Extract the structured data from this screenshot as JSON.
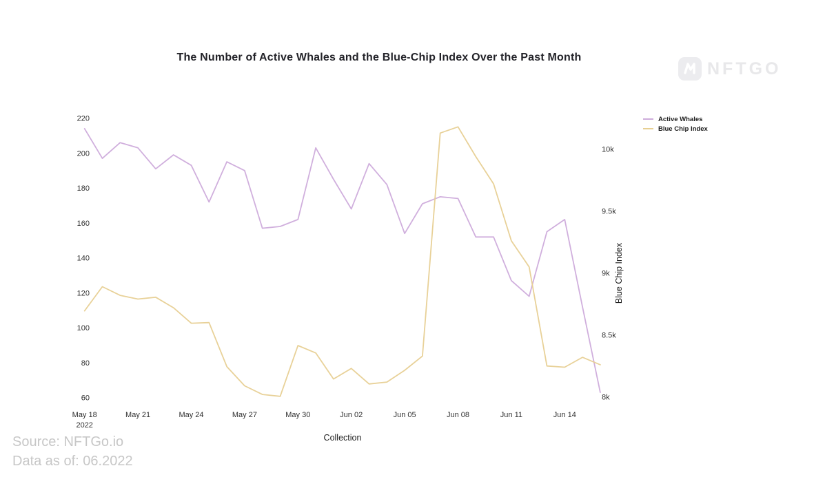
{
  "title": "The Number of Active Whales and the Blue-Chip Index Over the Past Month",
  "watermark": {
    "brand": "NFTGO",
    "icon": "nftgo-n-icon"
  },
  "footer": {
    "source": "Source: NFTGo.io",
    "data_as_of": "Data as of: 06.2022"
  },
  "chart_data": {
    "type": "line",
    "title": "The Number of Active Whales and the Blue-Chip Index Over the Past Month",
    "xlabel": "Collection",
    "ylabel_right": "Blue Chip Index",
    "legend_position": "top-right",
    "grid": false,
    "x": [
      "May 18",
      "May 19",
      "May 20",
      "May 21",
      "May 22",
      "May 23",
      "May 24",
      "May 25",
      "May 26",
      "May 27",
      "May 28",
      "May 29",
      "May 30",
      "May 31",
      "Jun 01",
      "Jun 02",
      "Jun 03",
      "Jun 04",
      "Jun 05",
      "Jun 06",
      "Jun 07",
      "Jun 08",
      "Jun 09",
      "Jun 10",
      "Jun 11",
      "Jun 12",
      "Jun 13",
      "Jun 14",
      "Jun 15",
      "Jun 16"
    ],
    "x_ticks": [
      {
        "index": 0,
        "label": "May 18",
        "sublabel": "2022"
      },
      {
        "index": 3,
        "label": "May 21"
      },
      {
        "index": 6,
        "label": "May 24"
      },
      {
        "index": 9,
        "label": "May 27"
      },
      {
        "index": 12,
        "label": "May 30"
      },
      {
        "index": 15,
        "label": "Jun 02"
      },
      {
        "index": 18,
        "label": "Jun 05"
      },
      {
        "index": 21,
        "label": "Jun 08"
      },
      {
        "index": 24,
        "label": "Jun 11"
      },
      {
        "index": 27,
        "label": "Jun 14"
      }
    ],
    "left_axis": {
      "min": 60,
      "max": 220,
      "ticks": [
        220,
        200,
        180,
        160,
        140,
        120,
        100,
        80,
        60
      ]
    },
    "right_axis": {
      "min": 8000,
      "max": 10000,
      "ticks": [
        {
          "label": "10k",
          "value": 10000
        },
        {
          "label": "9.5k",
          "value": 9500
        },
        {
          "label": "9k",
          "value": 9000
        },
        {
          "label": "8.5k",
          "value": 8500
        },
        {
          "label": "8k",
          "value": 8000
        }
      ]
    },
    "series": [
      {
        "name": "Active Whales",
        "axis": "left",
        "color": "#cdabdb",
        "values": [
          214,
          197,
          206,
          203,
          191,
          199,
          193,
          172,
          195,
          190,
          157,
          158,
          162,
          203,
          185,
          168,
          194,
          182,
          154,
          171,
          175,
          174,
          152,
          152,
          127,
          118,
          155,
          162,
          112,
          63
        ]
      },
      {
        "name": "Blue Chip Index",
        "axis": "right",
        "color": "#e7cf92",
        "values": [
          8695,
          8890,
          8820,
          8790,
          8805,
          8720,
          8595,
          8600,
          8245,
          8090,
          8020,
          8005,
          8415,
          8355,
          8145,
          8230,
          8105,
          8120,
          8215,
          8330,
          10130,
          10180,
          9940,
          9720,
          9260,
          9050,
          8250,
          8240,
          8320,
          8260
        ]
      }
    ]
  }
}
